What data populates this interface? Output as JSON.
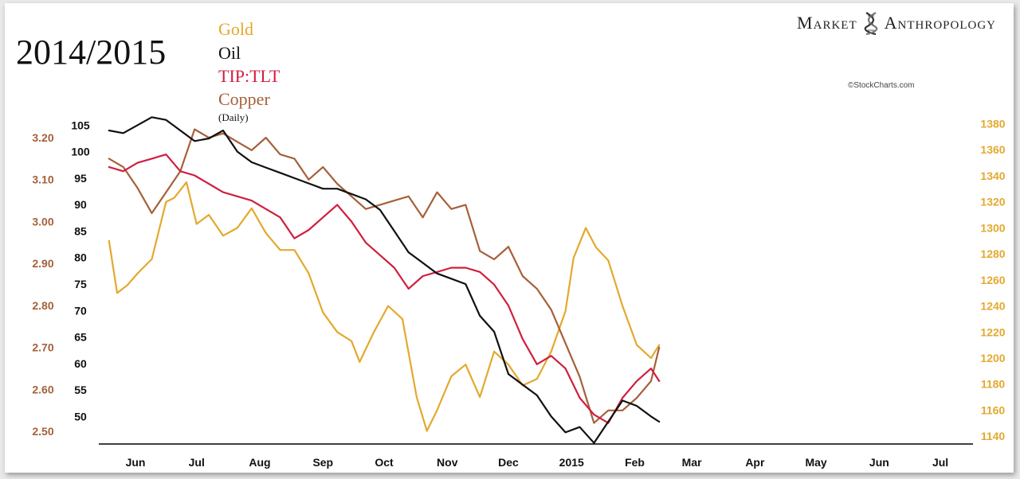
{
  "header": {
    "title": "2014/2015",
    "brand_left": "Market",
    "brand_right": "Anthropology",
    "credit": "©StockCharts.com",
    "note": "(Daily)"
  },
  "colors": {
    "gold": "#E3A92E",
    "oil": "#111111",
    "tip_tlt": "#D01F3F",
    "copper": "#A5603A",
    "brand_icon": "dna-helix-icon"
  },
  "chart_data": {
    "type": "line",
    "title": "2014/2015",
    "x_ticks": [
      "Jun",
      "Jul",
      "Aug",
      "Sep",
      "Oct",
      "Nov",
      "Dec",
      "2015",
      "Feb",
      "Mar",
      "Apr",
      "May",
      "Jun",
      "Jul"
    ],
    "x_range": [
      "2014-05-28",
      "2015-07-31"
    ],
    "axes": {
      "copper": {
        "side": "left",
        "ticks": [
          "3.20",
          "3.10",
          "3.00",
          "2.90",
          "2.80",
          "2.70",
          "2.60",
          "2.50"
        ],
        "range": [
          2.47,
          3.255
        ]
      },
      "oil": {
        "side": "left",
        "ticks": [
          "105",
          "100",
          "95",
          "90",
          "85",
          "80",
          "75",
          "70",
          "65",
          "60",
          "55",
          "50"
        ],
        "range": [
          44.8,
          107
        ]
      },
      "gold": {
        "side": "right",
        "ticks": [
          "1380",
          "1360",
          "1340",
          "1320",
          "1300",
          "1280",
          "1260",
          "1240",
          "1220",
          "1200",
          "1180",
          "1160",
          "1140"
        ],
        "range": [
          1134,
          1387
        ]
      }
    },
    "series": [
      {
        "name": "Gold",
        "axis": "gold",
        "x": [
          "2014-06-02",
          "2014-06-06",
          "2014-06-11",
          "2014-06-16",
          "2014-06-23",
          "2014-06-30",
          "2014-07-04",
          "2014-07-10",
          "2014-07-15",
          "2014-07-21",
          "2014-07-28",
          "2014-08-04",
          "2014-08-11",
          "2014-08-18",
          "2014-08-25",
          "2014-09-01",
          "2014-09-08",
          "2014-09-15",
          "2014-09-22",
          "2014-09-29",
          "2014-10-03",
          "2014-10-10",
          "2014-10-17",
          "2014-10-24",
          "2014-10-31",
          "2014-11-05",
          "2014-11-10",
          "2014-11-17",
          "2014-11-24",
          "2014-12-01",
          "2014-12-08",
          "2014-12-15",
          "2014-12-22",
          "2014-12-29",
          "2015-01-05",
          "2015-01-12",
          "2015-01-16",
          "2015-01-22",
          "2015-01-27",
          "2015-02-02",
          "2015-02-09",
          "2015-02-16",
          "2015-02-23",
          "2015-02-27"
        ],
        "values": [
          1290,
          1250,
          1256,
          1265,
          1276,
          1320,
          1323,
          1335,
          1303,
          1310,
          1294,
          1300,
          1315,
          1296,
          1283,
          1283,
          1265,
          1235,
          1220,
          1213,
          1197,
          1220,
          1240,
          1230,
          1170,
          1144,
          1160,
          1186,
          1195,
          1170,
          1205,
          1195,
          1179,
          1184,
          1205,
          1236,
          1277,
          1300,
          1285,
          1275,
          1240,
          1210,
          1200,
          1210
        ]
      },
      {
        "name": "Oil",
        "axis": "oil",
        "x": [
          "2014-06-02",
          "2014-06-09",
          "2014-06-16",
          "2014-06-23",
          "2014-06-30",
          "2014-07-07",
          "2014-07-14",
          "2014-07-21",
          "2014-07-28",
          "2014-08-04",
          "2014-08-11",
          "2014-08-18",
          "2014-08-25",
          "2014-09-01",
          "2014-09-08",
          "2014-09-15",
          "2014-09-22",
          "2014-09-29",
          "2014-10-06",
          "2014-10-13",
          "2014-10-20",
          "2014-10-27",
          "2014-11-03",
          "2014-11-10",
          "2014-11-17",
          "2014-11-24",
          "2014-12-01",
          "2014-12-08",
          "2014-12-15",
          "2014-12-22",
          "2014-12-29",
          "2015-01-05",
          "2015-01-12",
          "2015-01-19",
          "2015-01-26",
          "2015-02-02",
          "2015-02-09",
          "2015-02-16",
          "2015-02-23",
          "2015-02-27"
        ],
        "values": [
          104,
          103.5,
          105,
          106.5,
          106,
          104,
          102,
          102.5,
          104,
          100,
          98,
          97,
          96,
          95,
          94,
          93,
          93,
          92,
          91,
          89,
          85,
          81,
          79,
          77,
          76,
          75,
          69,
          66,
          58,
          56,
          54,
          50,
          47,
          48,
          45,
          49,
          53,
          52,
          50,
          49
        ]
      },
      {
        "name": "TIP:TLT",
        "axis": "copper",
        "x": [
          "2014-06-02",
          "2014-06-09",
          "2014-06-16",
          "2014-06-23",
          "2014-06-30",
          "2014-07-07",
          "2014-07-14",
          "2014-07-21",
          "2014-07-28",
          "2014-08-04",
          "2014-08-11",
          "2014-08-18",
          "2014-08-25",
          "2014-09-01",
          "2014-09-08",
          "2014-09-15",
          "2014-09-22",
          "2014-09-29",
          "2014-10-06",
          "2014-10-13",
          "2014-10-20",
          "2014-10-27",
          "2014-11-03",
          "2014-11-10",
          "2014-11-17",
          "2014-11-24",
          "2014-12-01",
          "2014-12-08",
          "2014-12-15",
          "2014-12-22",
          "2014-12-29",
          "2015-01-05",
          "2015-01-12",
          "2015-01-19",
          "2015-01-26",
          "2015-02-02",
          "2015-02-09",
          "2015-02-16",
          "2015-02-23",
          "2015-02-27"
        ],
        "values": [
          3.13,
          3.12,
          3.14,
          3.15,
          3.16,
          3.12,
          3.11,
          3.09,
          3.07,
          3.06,
          3.05,
          3.03,
          3.01,
          2.96,
          2.98,
          3.01,
          3.04,
          3.0,
          2.95,
          2.92,
          2.89,
          2.84,
          2.87,
          2.88,
          2.89,
          2.89,
          2.88,
          2.85,
          2.8,
          2.72,
          2.66,
          2.68,
          2.65,
          2.58,
          2.54,
          2.52,
          2.58,
          2.62,
          2.65,
          2.62
        ]
      },
      {
        "name": "Copper",
        "axis": "copper",
        "x": [
          "2014-06-02",
          "2014-06-09",
          "2014-06-16",
          "2014-06-23",
          "2014-06-30",
          "2014-07-07",
          "2014-07-14",
          "2014-07-21",
          "2014-07-28",
          "2014-08-04",
          "2014-08-11",
          "2014-08-18",
          "2014-08-25",
          "2014-09-01",
          "2014-09-08",
          "2014-09-15",
          "2014-09-22",
          "2014-09-29",
          "2014-10-06",
          "2014-10-13",
          "2014-10-20",
          "2014-10-27",
          "2014-11-03",
          "2014-11-10",
          "2014-11-17",
          "2014-11-24",
          "2014-12-01",
          "2014-12-08",
          "2014-12-15",
          "2014-12-22",
          "2014-12-29",
          "2015-01-05",
          "2015-01-12",
          "2015-01-19",
          "2015-01-26",
          "2015-02-02",
          "2015-02-09",
          "2015-02-16",
          "2015-02-23",
          "2015-02-27"
        ],
        "values": [
          3.15,
          3.13,
          3.08,
          3.02,
          3.07,
          3.12,
          3.22,
          3.2,
          3.21,
          3.19,
          3.17,
          3.2,
          3.16,
          3.15,
          3.1,
          3.13,
          3.09,
          3.06,
          3.03,
          3.04,
          3.05,
          3.06,
          3.01,
          3.07,
          3.03,
          3.04,
          2.93,
          2.91,
          2.94,
          2.87,
          2.84,
          2.79,
          2.71,
          2.63,
          2.52,
          2.55,
          2.55,
          2.58,
          2.62,
          2.7
        ]
      }
    ]
  }
}
